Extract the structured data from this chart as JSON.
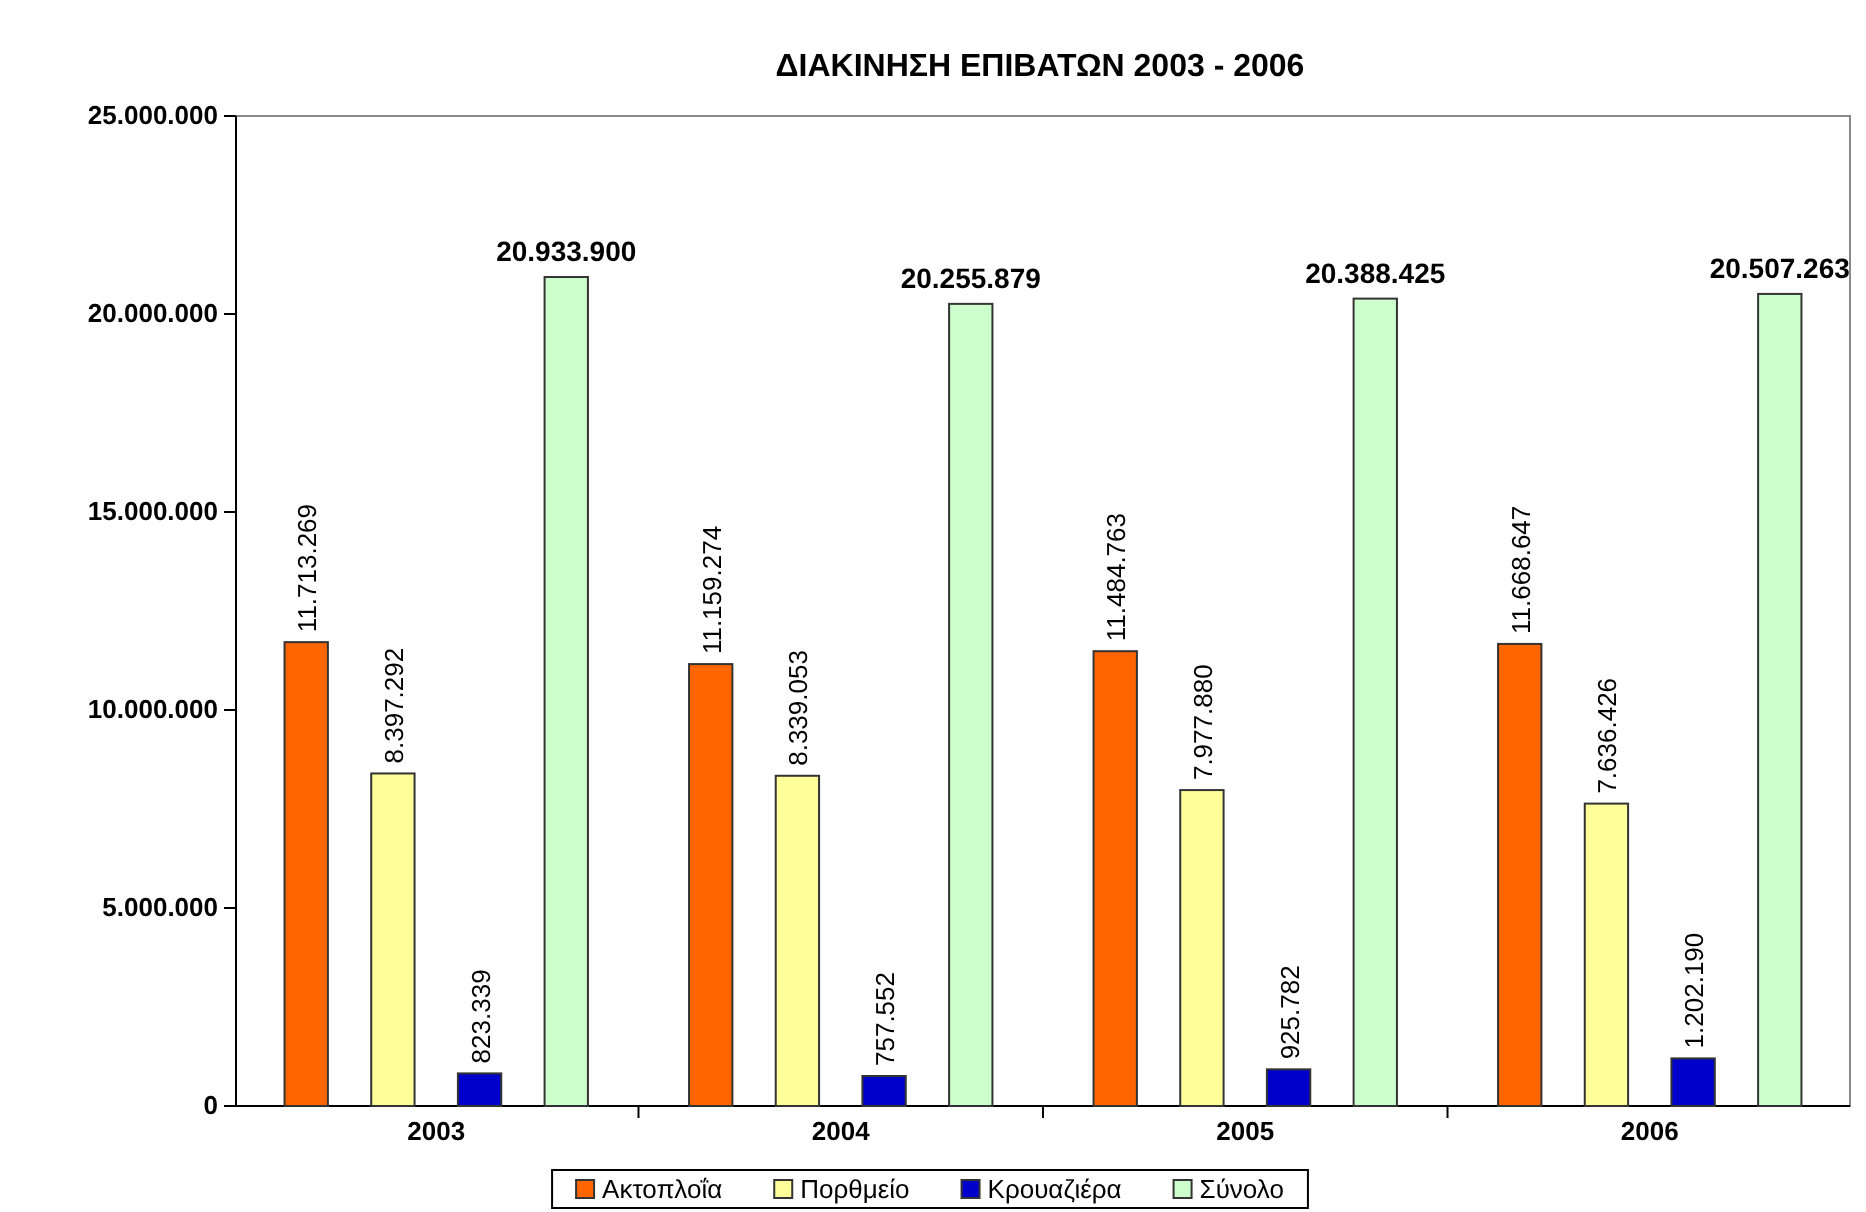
{
  "chart_data": {
    "type": "bar",
    "title": "ΔΙΑΚΙΝΗΣΗ ΕΠΙΒΑΤΩΝ 2003 - 2006",
    "categories": [
      "2003",
      "2004",
      "2005",
      "2006"
    ],
    "series": [
      {
        "name": "Ακτοπλοΐα",
        "color": "#ff6600",
        "values": [
          11713269,
          11159274,
          11484763,
          11668647
        ],
        "value_labels": [
          "11.713.269",
          "11.159.274",
          "11.484.763",
          "11.668.647"
        ]
      },
      {
        "name": "Πορθμείο",
        "color": "#ffff99",
        "values": [
          8397292,
          8339053,
          7977880,
          7636426
        ],
        "value_labels": [
          "8.397.292",
          "8.339.053",
          "7.977.880",
          "7.636.426"
        ]
      },
      {
        "name": "Κρουαζιέρα",
        "color": "#0000cc",
        "values": [
          823339,
          757552,
          925782,
          1202190
        ],
        "value_labels": [
          "823.339",
          "757.552",
          "925.782",
          "1.202.190"
        ]
      },
      {
        "name": "Σύνολο",
        "color": "#ccffcc",
        "values": [
          20933900,
          20255879,
          20388425,
          20507263
        ],
        "value_labels": [
          "20.933.900",
          "20.255.879",
          "20.388.425",
          "20.507.263"
        ]
      }
    ],
    "ylim": [
      0,
      25000000
    ],
    "yticks": [
      {
        "value": 0,
        "label": "0"
      },
      {
        "value": 5000000,
        "label": "5.000.000"
      },
      {
        "value": 10000000,
        "label": "10.000.000"
      },
      {
        "value": 15000000,
        "label": "15.000.000"
      },
      {
        "value": 20000000,
        "label": "20.000.000"
      },
      {
        "value": 25000000,
        "label": "25.000.000"
      }
    ],
    "grid": false,
    "legend": "bottom"
  }
}
